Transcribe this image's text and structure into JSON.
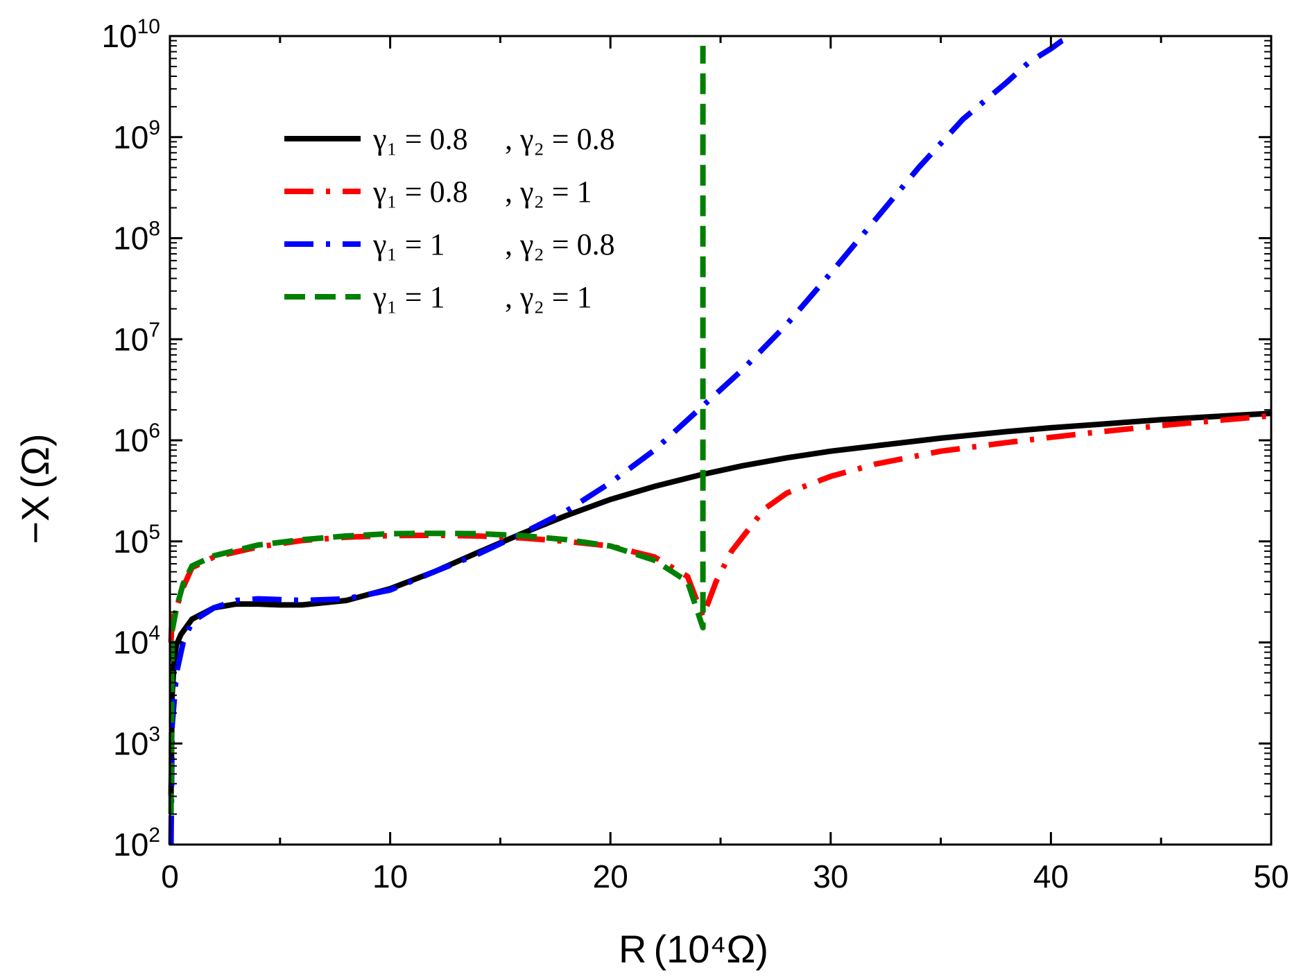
{
  "chart_data": {
    "type": "line",
    "title": "",
    "xlabel": "R",
    "xlabel_unit": "(10⁴Ω)",
    "ylabel": "−X",
    "ylabel_unit": "(Ω)",
    "xlim": [
      0,
      50
    ],
    "ylim": [
      100,
      10000000000
    ],
    "yscale": "log",
    "x_ticks": [
      0,
      10,
      20,
      30,
      40,
      50
    ],
    "x_tick_labels": [
      "0",
      "10",
      "20",
      "30",
      "40",
      "50"
    ],
    "y_ticks": [
      100,
      1000,
      10000,
      100000,
      1000000,
      10000000,
      100000000,
      1000000000,
      10000000000
    ],
    "y_tick_labels": [
      {
        "base": "10",
        "exp": "2"
      },
      {
        "base": "10",
        "exp": "3"
      },
      {
        "base": "10",
        "exp": "4"
      },
      {
        "base": "10",
        "exp": "5"
      },
      {
        "base": "10",
        "exp": "6"
      },
      {
        "base": "10",
        "exp": "7"
      },
      {
        "base": "10",
        "exp": "8"
      },
      {
        "base": "10",
        "exp": "9"
      },
      {
        "base": "10",
        "exp": "10"
      }
    ],
    "grid": false,
    "legend_position": "top-left",
    "series": [
      {
        "name": "γ₁ = 0.8 , γ₂ = 0.8",
        "legend_g1": "γ₁ = 0.8",
        "legend_g2": ", γ₂ = 0.8",
        "color": "#000000",
        "style": "solid",
        "x": [
          0.05,
          0.1,
          0.2,
          0.3,
          0.5,
          1,
          2,
          3,
          4,
          5,
          6,
          8,
          10,
          12,
          14,
          16,
          18,
          20,
          22,
          24,
          26,
          28,
          30,
          32,
          35,
          38,
          40,
          42,
          45,
          48,
          50
        ],
        "y": [
          300,
          3000,
          7000,
          9500,
          12000,
          17000,
          22000,
          24000,
          24000,
          23500,
          23500,
          26000,
          34000,
          50000,
          78000,
          120000,
          180000,
          260000,
          350000,
          450000,
          560000,
          670000,
          780000,
          880000,
          1050000,
          1220000,
          1330000,
          1430000,
          1600000,
          1750000,
          1850000
        ]
      },
      {
        "name": "γ₁ = 0.8 , γ₂ = 1",
        "legend_g1": "γ₁ = 0.8",
        "legend_g2": ", γ₂ = 1",
        "color": "#ff0000",
        "style": "dashdot",
        "x": [
          0.05,
          0.1,
          0.3,
          0.6,
          1,
          2,
          4,
          6,
          8,
          10,
          12,
          14,
          16,
          18,
          20,
          22,
          23.5,
          24.2,
          24.8,
          25.5,
          27,
          28,
          30,
          32,
          35,
          38,
          40,
          42,
          45,
          48,
          50
        ],
        "y": [
          10000,
          20000,
          22000,
          35000,
          55000,
          70000,
          88000,
          102000,
          110000,
          114000,
          115000,
          113000,
          108000,
          100000,
          90000,
          70000,
          45000,
          18000,
          40000,
          80000,
          210000,
          300000,
          440000,
          580000,
          780000,
          950000,
          1070000,
          1200000,
          1400000,
          1600000,
          1750000
        ]
      },
      {
        "name": "γ₁ = 1 , γ₂ = 0.8",
        "legend_g1": "γ₁ = 1",
        "legend_g2": ", γ₂ = 0.8",
        "color": "#0000ff",
        "style": "dashdot",
        "x": [
          0.05,
          0.1,
          0.3,
          0.6,
          1,
          2,
          3,
          4,
          5,
          6,
          8,
          10,
          12,
          14,
          16,
          18,
          20,
          22,
          24,
          26,
          28,
          30,
          32,
          34,
          36,
          38,
          39,
          40,
          40.5,
          41
        ],
        "y": [
          100,
          1500,
          5000,
          10000,
          16000,
          22000,
          26000,
          27000,
          26500,
          26000,
          27000,
          33000,
          50000,
          75000,
          120000,
          200000,
          380000,
          800000,
          2000000,
          5000000,
          14000000,
          45000000,
          150000000,
          500000000,
          1500000000,
          3500000000,
          5500000000,
          7500000000,
          9000000000,
          10000000000
        ]
      },
      {
        "name": "γ₁ = 1 , γ₂ = 1",
        "legend_g1": "γ₁ = 1",
        "legend_g2": ", γ₂ = 1",
        "color": "#008000",
        "style": "dashed",
        "x": [
          0.05,
          0.1,
          0.3,
          0.6,
          1,
          2,
          4,
          6,
          8,
          10,
          12,
          14,
          16,
          18,
          20,
          22,
          23.5,
          24.2,
          24.2
        ],
        "y": [
          200,
          13000,
          22000,
          38000,
          57000,
          72000,
          92000,
          104000,
          113000,
          119000,
          120000,
          119000,
          114000,
          104000,
          90000,
          65000,
          40000,
          14000,
          8000000000
        ]
      }
    ]
  }
}
